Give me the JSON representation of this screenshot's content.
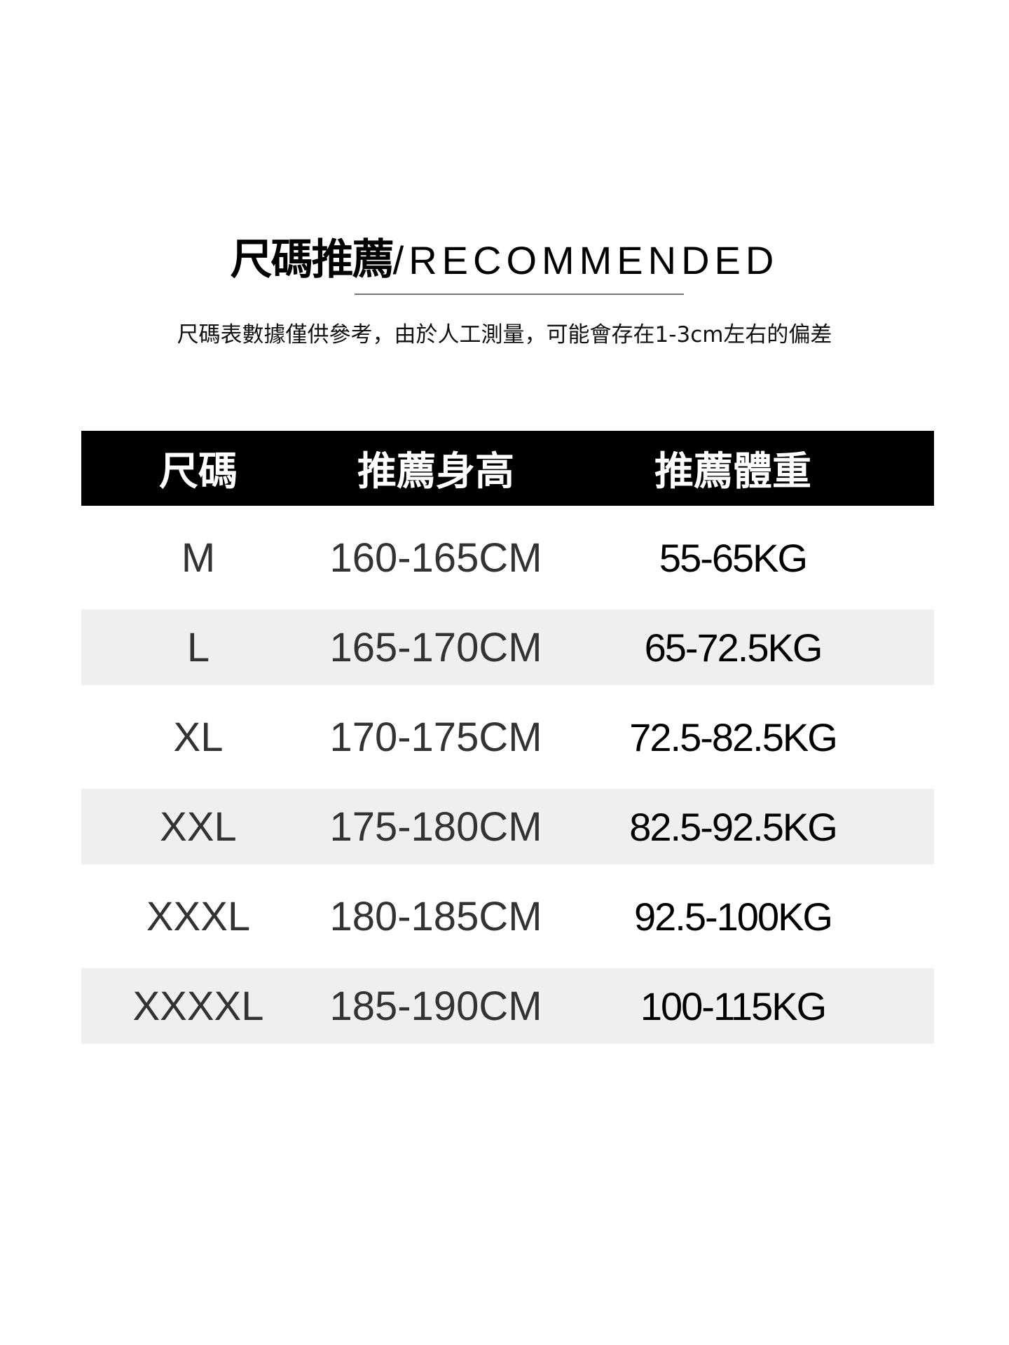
{
  "header": {
    "title_cn": "尺碼推薦",
    "title_en": "/RECOMMENDED",
    "subtitle": "尺碼表數據僅供參考，由於人工測量，可能會存在1-3cm左右的偏差"
  },
  "table": {
    "columns": [
      "尺碼",
      "推薦身高",
      "推薦體重"
    ],
    "rows": [
      {
        "size": "M",
        "height": "160-165CM",
        "weight": "55-65KG"
      },
      {
        "size": "L",
        "height": "165-170CM",
        "weight": "65-72.5KG"
      },
      {
        "size": "XL",
        "height": "170-175CM",
        "weight": "72.5-82.5KG"
      },
      {
        "size": "XXL",
        "height": "175-180CM",
        "weight": "82.5-92.5KG"
      },
      {
        "size": "XXXL",
        "height": "180-185CM",
        "weight": "92.5-100KG"
      },
      {
        "size": "XXXXL",
        "height": "185-190CM",
        "weight": "100-115KG"
      }
    ]
  },
  "colors": {
    "header_bg": "#000000",
    "stripe": "#efefef"
  }
}
